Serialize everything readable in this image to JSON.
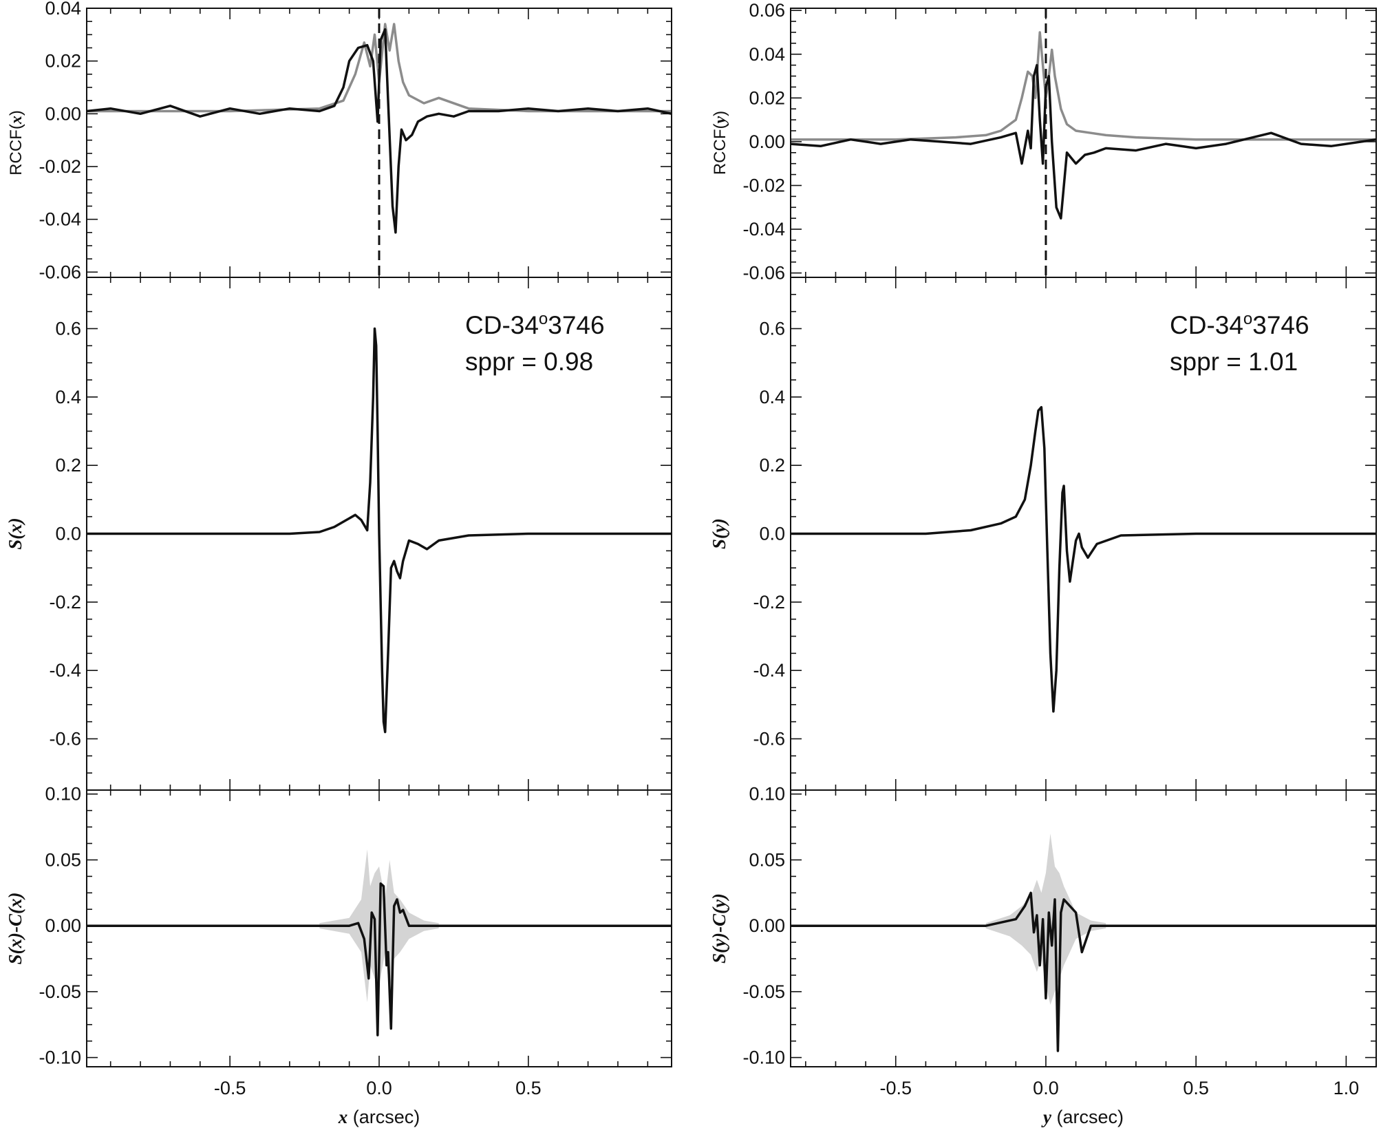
{
  "colors": {
    "black_curve": "#111111",
    "gray_curve": "#8c8c8c",
    "shade": "#d4d4d4",
    "axis": "#111111"
  },
  "chart_data": [
    {
      "id": "x",
      "type": "line",
      "xlabel_var": "x",
      "xlabel_unit": "(arcsec)",
      "xlim": [
        -0.98,
        0.98
      ],
      "xticks": [
        "-0.5",
        "0.0",
        "0.5"
      ],
      "xtick_values": [
        -0.5,
        0.0,
        0.5
      ],
      "dashed_marker_x": 0.0,
      "panels": [
        {
          "name": "rccf",
          "ylabel": "RCCF(x)",
          "ylabel_prefix": "RCCF(",
          "ylabel_var": "x",
          "ylabel_suffix": ")",
          "ylim": [
            -0.062,
            0.04
          ],
          "yticks": [
            "0.04",
            "0.02",
            "0.00",
            "-0.02",
            "-0.04",
            "-0.06"
          ],
          "ytick_values": [
            0.04,
            0.02,
            0.0,
            -0.02,
            -0.04,
            -0.06
          ],
          "series": [
            {
              "style": "gray",
              "x": [
                -0.98,
                -0.5,
                -0.2,
                -0.12,
                -0.08,
                -0.05,
                -0.03,
                -0.015,
                0.0,
                0.02,
                0.035,
                0.05,
                0.065,
                0.08,
                0.1,
                0.15,
                0.2,
                0.3,
                0.5,
                0.98
              ],
              "y": [
                0.001,
                0.001,
                0.002,
                0.005,
                0.015,
                0.027,
                0.018,
                0.03,
                0.012,
                0.034,
                0.024,
                0.034,
                0.02,
                0.012,
                0.007,
                0.004,
                0.006,
                0.002,
                0.001,
                0.001
              ]
            },
            {
              "style": "black",
              "x": [
                -0.98,
                -0.9,
                -0.8,
                -0.7,
                -0.6,
                -0.5,
                -0.4,
                -0.3,
                -0.2,
                -0.15,
                -0.12,
                -0.1,
                -0.07,
                -0.04,
                -0.02,
                -0.005,
                0.005,
                0.02,
                0.03,
                0.045,
                0.055,
                0.065,
                0.075,
                0.09,
                0.11,
                0.13,
                0.16,
                0.2,
                0.25,
                0.3,
                0.4,
                0.5,
                0.6,
                0.7,
                0.8,
                0.9,
                0.98
              ],
              "y": [
                0.001,
                0.002,
                0.0,
                0.003,
                -0.001,
                0.002,
                0.0,
                0.002,
                0.001,
                0.003,
                0.01,
                0.02,
                0.025,
                0.026,
                0.02,
                -0.003,
                0.028,
                0.032,
                0.005,
                -0.035,
                -0.045,
                -0.02,
                -0.006,
                -0.01,
                -0.008,
                -0.003,
                -0.001,
                0.0,
                -0.001,
                0.001,
                0.001,
                0.002,
                0.001,
                0.002,
                0.001,
                0.002,
                0.0
              ]
            }
          ]
        },
        {
          "name": "signal",
          "ylabel": "S(x)",
          "ylabel_prefix": "",
          "ylabel_var": "S(x)",
          "ylabel_suffix": "",
          "ylim": [
            -0.75,
            0.75
          ],
          "yticks": [
            "0.6",
            "0.4",
            "0.2",
            "0.0",
            "-0.2",
            "-0.4",
            "-0.6"
          ],
          "ytick_values": [
            0.6,
            0.4,
            0.2,
            0.0,
            -0.2,
            -0.4,
            -0.6
          ],
          "annotation": {
            "object": "CD-34",
            "object_sup": "o",
            "object_end": "3746",
            "sppr": "sppr = 0.98"
          },
          "series": [
            {
              "style": "black",
              "x": [
                -0.98,
                -0.5,
                -0.3,
                -0.2,
                -0.15,
                -0.11,
                -0.08,
                -0.06,
                -0.04,
                -0.03,
                -0.02,
                -0.015,
                -0.01,
                -0.005,
                0.0,
                0.01,
                0.015,
                0.02,
                0.03,
                0.04,
                0.05,
                0.06,
                0.07,
                0.08,
                0.1,
                0.13,
                0.16,
                0.2,
                0.3,
                0.5,
                0.98
              ],
              "y": [
                0.0,
                0.0,
                0.0,
                0.005,
                0.02,
                0.04,
                0.055,
                0.04,
                0.01,
                0.15,
                0.4,
                0.6,
                0.55,
                0.3,
                0.0,
                -0.4,
                -0.55,
                -0.58,
                -0.35,
                -0.1,
                -0.08,
                -0.11,
                -0.13,
                -0.08,
                -0.02,
                -0.03,
                -0.045,
                -0.02,
                -0.005,
                0.0,
                0.0
              ]
            }
          ]
        },
        {
          "name": "residual",
          "ylabel": "S(x)-C(x)",
          "ylabel_prefix": "",
          "ylabel_var": "S(x)-C(x)",
          "ylabel_suffix": "",
          "ylim": [
            -0.107,
            0.103
          ],
          "yticks": [
            "0.10",
            "0.05",
            "0.00",
            "-0.05",
            "-0.10"
          ],
          "ytick_values": [
            0.1,
            0.05,
            0.0,
            -0.05,
            -0.1
          ],
          "shade": {
            "x": [
              -0.2,
              -0.1,
              -0.06,
              -0.04,
              -0.03,
              -0.015,
              0.0,
              0.02,
              0.035,
              0.05,
              0.07,
              0.1,
              0.15,
              0.2
            ],
            "upper": [
              0.002,
              0.006,
              0.02,
              0.058,
              0.03,
              0.04,
              0.045,
              0.02,
              0.05,
              0.025,
              0.02,
              0.01,
              0.004,
              0.002
            ],
            "lower": [
              -0.002,
              -0.006,
              -0.02,
              -0.058,
              -0.03,
              -0.04,
              -0.045,
              -0.02,
              -0.05,
              -0.025,
              -0.02,
              -0.01,
              -0.004,
              -0.002
            ]
          },
          "series": [
            {
              "style": "black",
              "x": [
                -0.98,
                -0.1,
                -0.07,
                -0.05,
                -0.035,
                -0.025,
                -0.015,
                -0.005,
                0.005,
                0.015,
                0.025,
                0.03,
                0.04,
                0.05,
                0.06,
                0.07,
                0.08,
                0.1,
                0.15,
                0.98
              ],
              "y": [
                0.0,
                0.0,
                0.002,
                -0.01,
                -0.04,
                0.01,
                0.005,
                -0.083,
                0.032,
                0.03,
                -0.03,
                -0.02,
                -0.078,
                0.015,
                0.02,
                0.01,
                0.012,
                0.0,
                0.0,
                0.0
              ]
            }
          ]
        }
      ]
    },
    {
      "id": "y",
      "type": "line",
      "xlabel_var": "y",
      "xlabel_unit": "(arcsec)",
      "xlim": [
        -0.85,
        1.1
      ],
      "xticks": [
        "-0.5",
        "0.0",
        "0.5",
        "1.0"
      ],
      "xtick_values": [
        -0.5,
        0.0,
        0.5,
        1.0
      ],
      "dashed_marker_x": 0.0,
      "panels": [
        {
          "name": "rccf",
          "ylabel": "RCCF(y)",
          "ylabel_prefix": "RCCF(",
          "ylabel_var": "y",
          "ylabel_suffix": ")",
          "ylim": [
            -0.062,
            0.061
          ],
          "yticks": [
            "0.06",
            "0.04",
            "0.02",
            "0.00",
            "-0.02",
            "-0.04",
            "-0.06"
          ],
          "ytick_values": [
            0.06,
            0.04,
            0.02,
            0.0,
            -0.02,
            -0.04,
            -0.06
          ],
          "series": [
            {
              "style": "gray",
              "x": [
                -0.85,
                -0.5,
                -0.3,
                -0.2,
                -0.15,
                -0.1,
                -0.08,
                -0.06,
                -0.045,
                -0.035,
                -0.02,
                -0.01,
                0.0,
                0.01,
                0.02,
                0.03,
                0.05,
                0.07,
                0.1,
                0.15,
                0.2,
                0.3,
                0.5,
                1.1
              ],
              "y": [
                0.001,
                0.001,
                0.002,
                0.003,
                0.005,
                0.01,
                0.02,
                0.032,
                0.03,
                0.02,
                0.05,
                0.035,
                0.02,
                0.03,
                0.042,
                0.03,
                0.015,
                0.008,
                0.005,
                0.004,
                0.003,
                0.002,
                0.001,
                0.001
              ]
            },
            {
              "style": "black",
              "x": [
                -0.85,
                -0.75,
                -0.65,
                -0.55,
                -0.45,
                -0.35,
                -0.25,
                -0.15,
                -0.1,
                -0.08,
                -0.06,
                -0.05,
                -0.04,
                -0.03,
                -0.02,
                -0.01,
                0.0,
                0.01,
                0.02,
                0.035,
                0.05,
                0.07,
                0.1,
                0.13,
                0.16,
                0.2,
                0.3,
                0.4,
                0.5,
                0.6,
                0.75,
                0.85,
                0.95,
                1.1
              ],
              "y": [
                -0.001,
                -0.002,
                0.001,
                -0.001,
                0.001,
                0.0,
                -0.001,
                0.002,
                0.004,
                -0.01,
                0.005,
                -0.003,
                0.03,
                0.035,
                0.01,
                -0.01,
                0.025,
                0.03,
                0.0,
                -0.03,
                -0.035,
                -0.005,
                -0.01,
                -0.006,
                -0.005,
                -0.003,
                -0.004,
                -0.001,
                -0.003,
                -0.001,
                0.004,
                -0.001,
                -0.002,
                0.001
              ]
            }
          ]
        },
        {
          "name": "signal",
          "ylabel": "S(y)",
          "ylabel_prefix": "",
          "ylabel_var": "S(y)",
          "ylabel_suffix": "",
          "ylim": [
            -0.75,
            0.75
          ],
          "yticks": [
            "0.6",
            "0.4",
            "0.2",
            "0.0",
            "-0.2",
            "-0.4",
            "-0.6"
          ],
          "ytick_values": [
            0.6,
            0.4,
            0.2,
            0.0,
            -0.2,
            -0.4,
            -0.6
          ],
          "annotation": {
            "object": "CD-34",
            "object_sup": "o",
            "object_end": "3746",
            "sppr": "sppr = 1.01"
          },
          "series": [
            {
              "style": "black",
              "x": [
                -0.85,
                -0.4,
                -0.25,
                -0.15,
                -0.1,
                -0.07,
                -0.05,
                -0.035,
                -0.025,
                -0.015,
                -0.005,
                0.005,
                0.015,
                0.025,
                0.035,
                0.045,
                0.055,
                0.06,
                0.07,
                0.08,
                0.09,
                0.1,
                0.11,
                0.12,
                0.14,
                0.17,
                0.25,
                0.5,
                1.1
              ],
              "y": [
                0.0,
                0.0,
                0.01,
                0.03,
                0.05,
                0.1,
                0.2,
                0.3,
                0.36,
                0.37,
                0.25,
                -0.05,
                -0.35,
                -0.52,
                -0.4,
                -0.1,
                0.12,
                0.14,
                -0.05,
                -0.14,
                -0.08,
                -0.02,
                0.0,
                -0.04,
                -0.07,
                -0.03,
                -0.005,
                0.0,
                0.0
              ]
            }
          ]
        },
        {
          "name": "residual",
          "ylabel": "S(y)-C(y)",
          "ylabel_prefix": "",
          "ylabel_var": "S(y)-C(y)",
          "ylabel_suffix": "",
          "ylim": [
            -0.107,
            0.103
          ],
          "yticks": [
            "0.10",
            "0.05",
            "0.00",
            "-0.05",
            "-0.10"
          ],
          "ytick_values": [
            0.1,
            0.05,
            0.0,
            -0.05,
            -0.1
          ],
          "shade": {
            "x": [
              -0.2,
              -0.12,
              -0.08,
              -0.05,
              -0.03,
              -0.015,
              0.0,
              0.015,
              0.03,
              0.045,
              0.06,
              0.08,
              0.1,
              0.15,
              0.2
            ],
            "upper": [
              0.002,
              0.008,
              0.015,
              0.022,
              0.035,
              0.025,
              0.04,
              0.07,
              0.045,
              0.04,
              0.03,
              0.02,
              0.01,
              0.004,
              0.002
            ],
            "lower": [
              -0.002,
              -0.008,
              -0.015,
              -0.022,
              -0.035,
              -0.025,
              -0.045,
              -0.06,
              -0.05,
              -0.04,
              -0.03,
              -0.02,
              -0.01,
              -0.004,
              -0.002
            ]
          },
          "series": [
            {
              "style": "black",
              "x": [
                -0.85,
                -0.2,
                -0.1,
                -0.07,
                -0.05,
                -0.04,
                -0.03,
                -0.02,
                -0.01,
                0.0,
                0.01,
                0.02,
                0.03,
                0.04,
                0.05,
                0.06,
                0.08,
                0.1,
                0.12,
                0.15,
                1.1
              ],
              "y": [
                0.0,
                0.0,
                0.005,
                0.015,
                0.025,
                -0.005,
                0.008,
                -0.03,
                0.005,
                -0.055,
                0.01,
                -0.015,
                0.02,
                -0.095,
                0.01,
                0.02,
                0.015,
                0.01,
                -0.02,
                0.0,
                0.0
              ]
            }
          ]
        }
      ]
    }
  ]
}
